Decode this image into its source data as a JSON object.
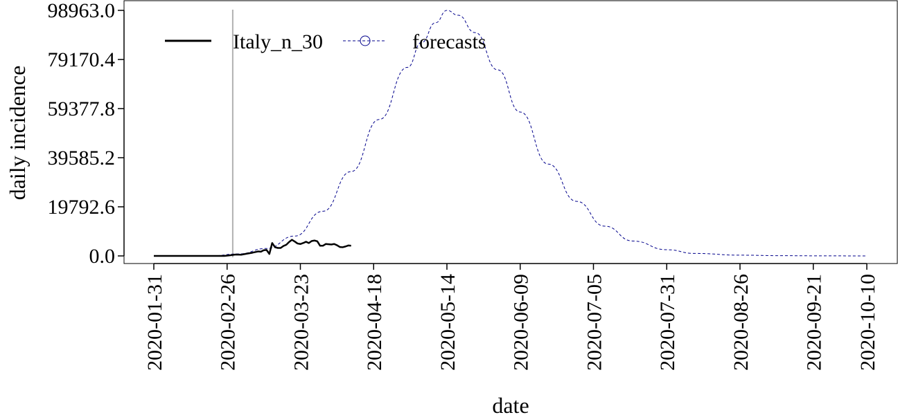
{
  "chart_data": {
    "type": "line",
    "xlabel": "date",
    "ylabel": "daily incidence",
    "x_axis": {
      "range": [
        "2020-01-31",
        "2020-10-10"
      ],
      "tick_labels": [
        "2020-01-31",
        "2020-02-26",
        "2020-03-23",
        "2020-04-18",
        "2020-05-14",
        "2020-06-09",
        "2020-07-05",
        "2020-07-31",
        "2020-08-26",
        "2020-09-21",
        "2020-10-10"
      ]
    },
    "y_axis": {
      "ylim": [
        0,
        98963.0
      ],
      "tick_labels": [
        "0.0",
        "19792.6",
        "39585.2",
        "59377.8",
        "79170.4",
        "98963.0"
      ]
    },
    "grid": false,
    "legend_position": "top-left",
    "vertical_marker_date": "2020-02-28",
    "series": [
      {
        "name": "Italy_n_30",
        "style": "solid",
        "color": "#000000",
        "points": [
          [
            "2020-01-31",
            0
          ],
          [
            "2020-02-05",
            0
          ],
          [
            "2020-02-10",
            0
          ],
          [
            "2020-02-15",
            0
          ],
          [
            "2020-02-20",
            0
          ],
          [
            "2020-02-25",
            0
          ],
          [
            "2020-02-27",
            250
          ],
          [
            "2020-02-29",
            550
          ],
          [
            "2020-03-02",
            500
          ],
          [
            "2020-03-04",
            900
          ],
          [
            "2020-03-06",
            1300
          ],
          [
            "2020-03-08",
            1800
          ],
          [
            "2020-03-09",
            1700
          ],
          [
            "2020-03-10",
            2300
          ],
          [
            "2020-03-11",
            2400
          ],
          [
            "2020-03-12",
            800
          ],
          [
            "2020-03-13",
            5200
          ],
          [
            "2020-03-14",
            3500
          ],
          [
            "2020-03-15",
            3200
          ],
          [
            "2020-03-16",
            3200
          ],
          [
            "2020-03-17",
            4000
          ],
          [
            "2020-03-18",
            4500
          ],
          [
            "2020-03-19",
            5600
          ],
          [
            "2020-03-20",
            6500
          ],
          [
            "2020-03-21",
            5800
          ],
          [
            "2020-03-22",
            5000
          ],
          [
            "2020-03-23",
            4800
          ],
          [
            "2020-03-24",
            5200
          ],
          [
            "2020-03-25",
            5700
          ],
          [
            "2020-03-26",
            5200
          ],
          [
            "2020-03-27",
            6000
          ],
          [
            "2020-03-28",
            6200
          ],
          [
            "2020-03-29",
            5900
          ],
          [
            "2020-03-30",
            4100
          ],
          [
            "2020-03-31",
            4100
          ],
          [
            "2020-04-01",
            4800
          ],
          [
            "2020-04-02",
            4700
          ],
          [
            "2020-04-03",
            4600
          ],
          [
            "2020-04-04",
            4800
          ],
          [
            "2020-04-05",
            4300
          ],
          [
            "2020-04-06",
            3600
          ],
          [
            "2020-04-07",
            3500
          ],
          [
            "2020-04-08",
            3800
          ],
          [
            "2020-04-09",
            4200
          ],
          [
            "2020-04-10",
            4100
          ]
        ]
      },
      {
        "name": "forecasts",
        "style": "dashed",
        "color": "#00008B",
        "marker": "circle",
        "points": [
          [
            "2020-01-31",
            0
          ],
          [
            "2020-02-10",
            0
          ],
          [
            "2020-02-20",
            0
          ],
          [
            "2020-03-01",
            800
          ],
          [
            "2020-03-11",
            3000
          ],
          [
            "2020-03-21",
            8000
          ],
          [
            "2020-03-31",
            18000
          ],
          [
            "2020-04-10",
            34000
          ],
          [
            "2020-04-20",
            55000
          ],
          [
            "2020-04-30",
            76000
          ],
          [
            "2020-05-05",
            86000
          ],
          [
            "2020-05-10",
            94000
          ],
          [
            "2020-05-14",
            98963
          ],
          [
            "2020-05-18",
            97000
          ],
          [
            "2020-05-24",
            90000
          ],
          [
            "2020-06-01",
            75000
          ],
          [
            "2020-06-09",
            58000
          ],
          [
            "2020-06-19",
            37000
          ],
          [
            "2020-06-29",
            22000
          ],
          [
            "2020-07-09",
            12000
          ],
          [
            "2020-07-19",
            6000
          ],
          [
            "2020-07-31",
            2500
          ],
          [
            "2020-08-10",
            1000
          ],
          [
            "2020-08-26",
            300
          ],
          [
            "2020-09-10",
            100
          ],
          [
            "2020-09-21",
            50
          ],
          [
            "2020-10-10",
            0
          ]
        ]
      }
    ]
  }
}
